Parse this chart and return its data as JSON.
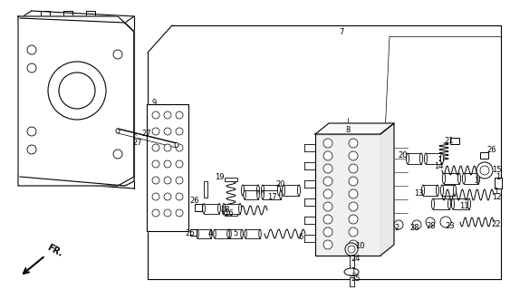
{
  "bg_color": "#ffffff",
  "fg_color": "#000000",
  "fig_width": 5.63,
  "fig_height": 3.2,
  "dpi": 100
}
